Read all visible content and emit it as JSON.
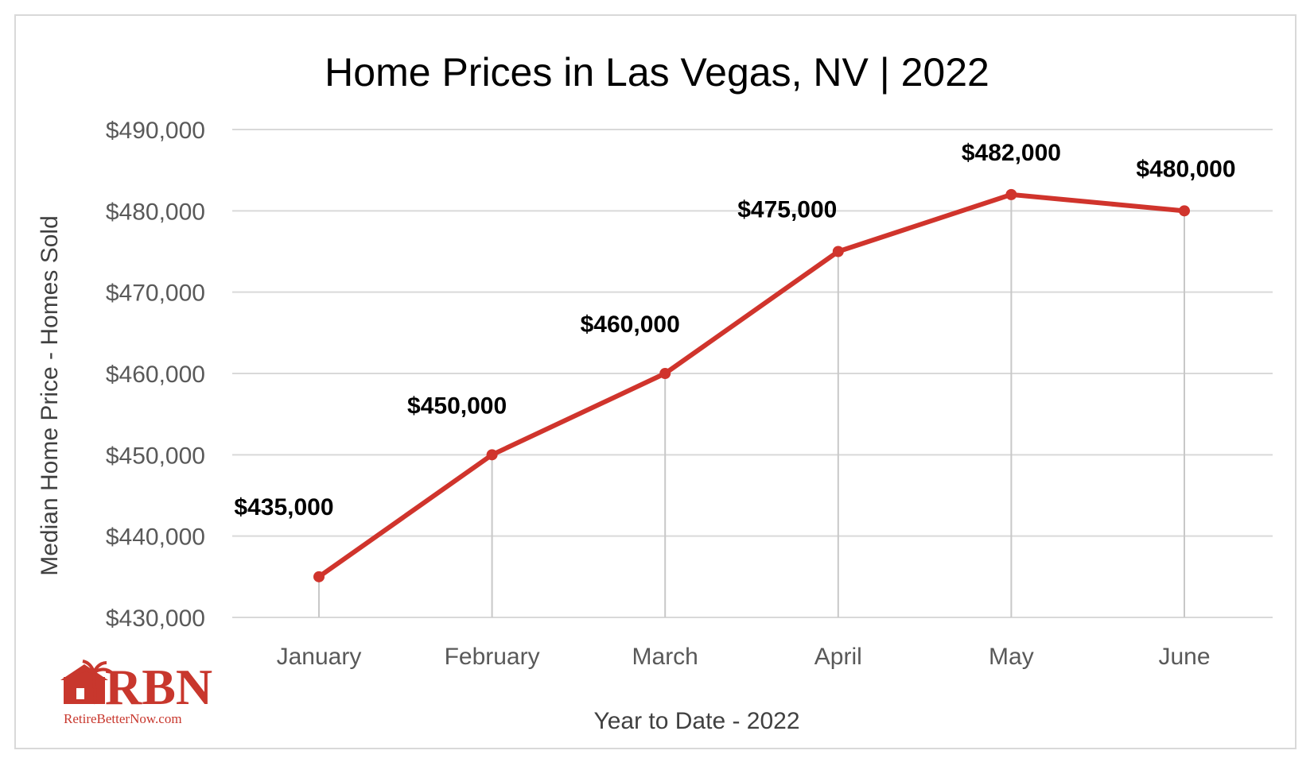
{
  "chart_data": {
    "type": "line",
    "title": "Home Prices in Las Vegas, NV | 2022",
    "xlabel": "Year to Date - 2022",
    "ylabel": "Median Home Price - Homes Sold",
    "categories": [
      "January",
      "February",
      "March",
      "April",
      "May",
      "June"
    ],
    "values": [
      435000,
      450000,
      460000,
      475000,
      482000,
      480000
    ],
    "data_labels": [
      "$435,000",
      "$450,000",
      "$460,000",
      "$475,000",
      "$482,000",
      "$480,000"
    ],
    "ylim": [
      430000,
      490000
    ],
    "ytick_values": [
      430000,
      440000,
      450000,
      460000,
      470000,
      480000,
      490000
    ],
    "yticks": [
      "$430,000",
      "$440,000",
      "$450,000",
      "$460,000",
      "$470,000",
      "$480,000",
      "$490,000"
    ],
    "grid": true,
    "legend": "none",
    "line_color": "#d0342c",
    "grid_color": "#d9d9d9"
  },
  "logo": {
    "letters": "RBN",
    "tagline": "RetireBetterNow.com",
    "color": "#c8372d"
  }
}
